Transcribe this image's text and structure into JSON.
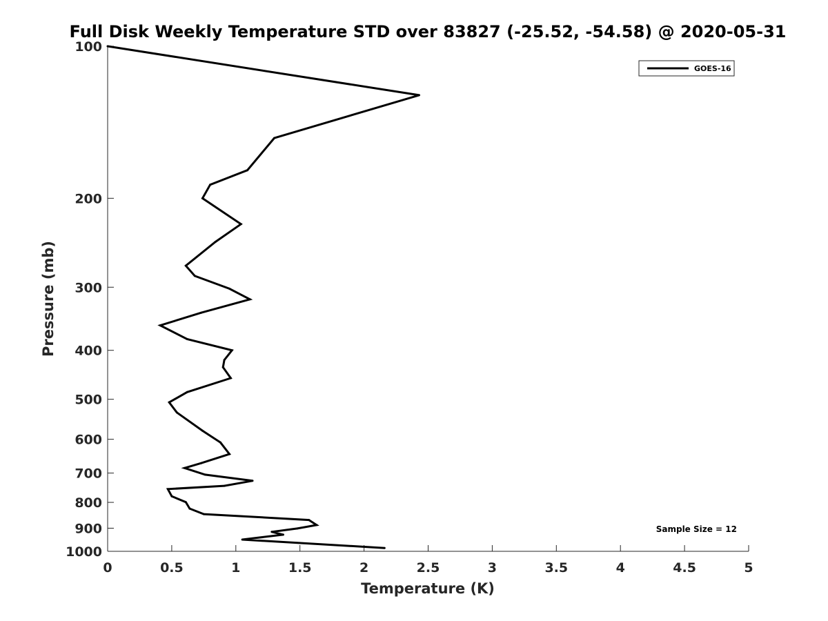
{
  "chart_data": {
    "type": "line",
    "title": "Full Disk Weekly Temperature STD over 83827 (-25.52, -54.58) @ 2020-05-31",
    "xlabel": "Temperature (K)",
    "ylabel": "Pressure (mb)",
    "xlim": [
      0,
      5
    ],
    "ylim": [
      100,
      1000
    ],
    "y_scale": "log",
    "y_reversed": true,
    "grid": false,
    "legend_position": "top-right",
    "x_ticks": [
      "0",
      "0.5",
      "1",
      "1.5",
      "2",
      "2.5",
      "3",
      "3.5",
      "4",
      "4.5",
      "5"
    ],
    "y_ticks": [
      "100",
      "200",
      "300",
      "400",
      "500",
      "600",
      "700",
      "800",
      "900",
      "1000"
    ],
    "annotation": "Sample Size = 12",
    "series": [
      {
        "name": "GOES-16",
        "color": "#000000",
        "points": [
          [
            0.0,
            100
          ],
          [
            2.43,
            125
          ],
          [
            1.3,
            152
          ],
          [
            1.09,
            176
          ],
          [
            0.8,
            188
          ],
          [
            0.74,
            200
          ],
          [
            1.04,
            225
          ],
          [
            0.84,
            244
          ],
          [
            0.61,
            272
          ],
          [
            0.68,
            285
          ],
          [
            0.95,
            302
          ],
          [
            1.11,
            317
          ],
          [
            0.73,
            337
          ],
          [
            0.41,
            357
          ],
          [
            0.62,
            380
          ],
          [
            0.97,
            400
          ],
          [
            0.91,
            418
          ],
          [
            0.9,
            432
          ],
          [
            0.96,
            454
          ],
          [
            0.62,
            484
          ],
          [
            0.48,
            507
          ],
          [
            0.54,
            531
          ],
          [
            0.74,
            577
          ],
          [
            0.88,
            609
          ],
          [
            0.95,
            642
          ],
          [
            0.73,
            669
          ],
          [
            0.6,
            684
          ],
          [
            0.76,
            705
          ],
          [
            1.13,
            725
          ],
          [
            0.91,
            742
          ],
          [
            0.47,
            753
          ],
          [
            0.5,
            778
          ],
          [
            0.61,
            799
          ],
          [
            0.64,
            823
          ],
          [
            0.75,
            844
          ],
          [
            1.57,
            867
          ],
          [
            1.63,
            887
          ],
          [
            1.48,
            901
          ],
          [
            1.28,
            915
          ],
          [
            1.37,
            927
          ],
          [
            1.05,
            948
          ],
          [
            2.16,
            985
          ]
        ]
      }
    ]
  }
}
